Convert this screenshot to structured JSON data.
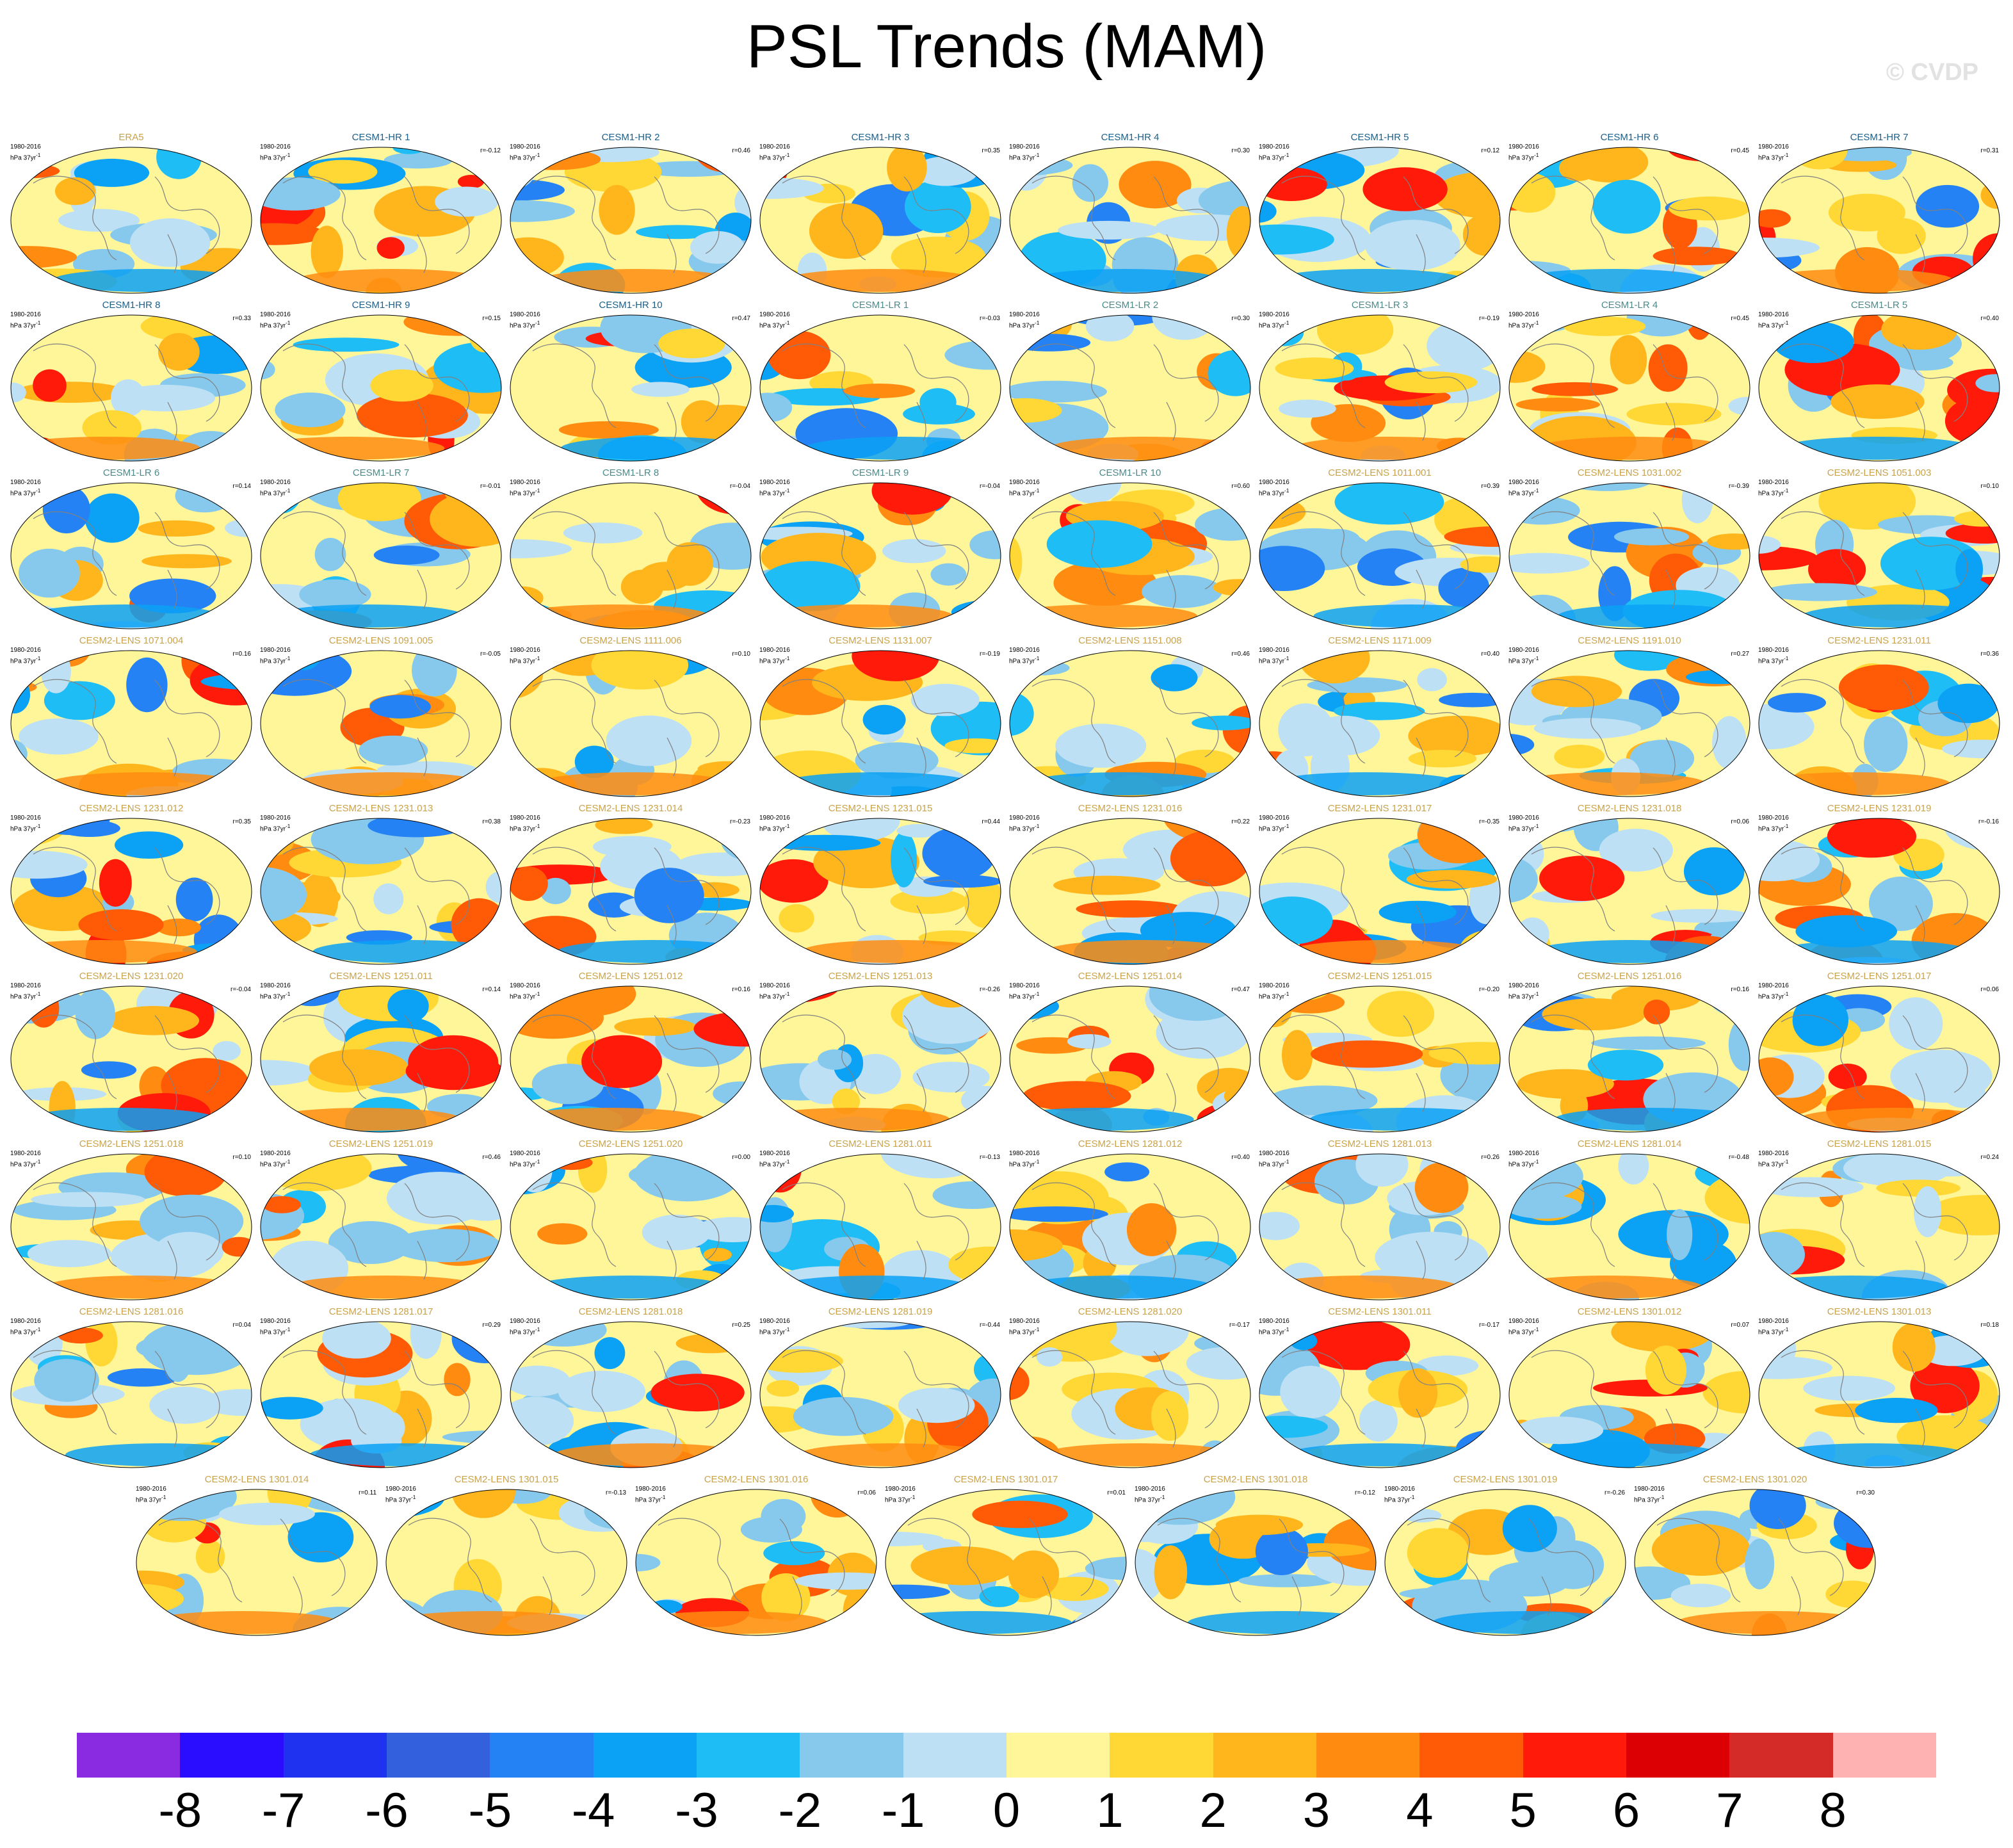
{
  "title": "PSL Trends (MAM)",
  "watermark": "© CVDP",
  "period": "1980-2016",
  "units": "hPa 37yr",
  "units_sup": "-1",
  "colors": [
    "#8a2be2",
    "#2a0dfe",
    "#1e32f0",
    "#3360dc",
    "#2582f4",
    "#0ba1f4",
    "#1fbdf6",
    "#87c9ec",
    "#bde0f4",
    "#fff69a",
    "#ffd835",
    "#ffb61c",
    "#ff8c10",
    "#ff5a05",
    "#ff1a0a",
    "#dc0004",
    "#d42a28",
    "#ffb2b2"
  ],
  "chart_data": {
    "type": "heatmap",
    "title": "PSL Trends (MAM)",
    "colorbar": {
      "ticks": [
        "-8",
        "-7",
        "-6",
        "-5",
        "-4",
        "-3",
        "-2",
        "-1",
        "0",
        "1",
        "2",
        "3",
        "4",
        "5",
        "6",
        "7",
        "8"
      ],
      "range": [
        -9,
        9
      ],
      "n_bins": 18
    },
    "panels": [
      {
        "name": "ERA5",
        "group": "obs",
        "r": ""
      },
      {
        "name": "CESM1-HR 1",
        "group": "hr",
        "r": "r=-0.12"
      },
      {
        "name": "CESM1-HR 2",
        "group": "hr",
        "r": "r=0.46"
      },
      {
        "name": "CESM1-HR 3",
        "group": "hr",
        "r": "r=0.35"
      },
      {
        "name": "CESM1-HR 4",
        "group": "hr",
        "r": "r=0.30"
      },
      {
        "name": "CESM1-HR 5",
        "group": "hr",
        "r": "r=0.12"
      },
      {
        "name": "CESM1-HR 6",
        "group": "hr",
        "r": "r=0.45"
      },
      {
        "name": "CESM1-HR 7",
        "group": "hr",
        "r": "r=0.31"
      },
      {
        "name": "CESM1-HR 8",
        "group": "hr",
        "r": "r=0.33"
      },
      {
        "name": "CESM1-HR 9",
        "group": "hr",
        "r": "r=0.15"
      },
      {
        "name": "CESM1-HR 10",
        "group": "hr",
        "r": "r=0.47"
      },
      {
        "name": "CESM1-LR 1",
        "group": "lr",
        "r": "r=-0.03"
      },
      {
        "name": "CESM1-LR 2",
        "group": "lr",
        "r": "r=0.30"
      },
      {
        "name": "CESM1-LR 3",
        "group": "lr",
        "r": "r=-0.19"
      },
      {
        "name": "CESM1-LR 4",
        "group": "lr",
        "r": "r=0.45"
      },
      {
        "name": "CESM1-LR 5",
        "group": "lr",
        "r": "r=0.40"
      },
      {
        "name": "CESM1-LR 6",
        "group": "lr",
        "r": "r=0.14"
      },
      {
        "name": "CESM1-LR 7",
        "group": "lr",
        "r": "r=-0.01"
      },
      {
        "name": "CESM1-LR 8",
        "group": "lr",
        "r": "r=-0.04"
      },
      {
        "name": "CESM1-LR 9",
        "group": "lr",
        "r": "r=-0.04"
      },
      {
        "name": "CESM1-LR 10",
        "group": "lr",
        "r": "r=0.60"
      },
      {
        "name": "CESM2-LENS 1011.001",
        "group": "lens",
        "r": "r=0.39"
      },
      {
        "name": "CESM2-LENS 1031.002",
        "group": "lens",
        "r": "r=-0.39"
      },
      {
        "name": "CESM2-LENS 1051.003",
        "group": "lens",
        "r": "r=0.10"
      },
      {
        "name": "CESM2-LENS 1071.004",
        "group": "lens",
        "r": "r=0.16"
      },
      {
        "name": "CESM2-LENS 1091.005",
        "group": "lens",
        "r": "r=-0.05"
      },
      {
        "name": "CESM2-LENS 1111.006",
        "group": "lens",
        "r": "r=0.10"
      },
      {
        "name": "CESM2-LENS 1131.007",
        "group": "lens",
        "r": "r=-0.19"
      },
      {
        "name": "CESM2-LENS 1151.008",
        "group": "lens",
        "r": "r=0.46"
      },
      {
        "name": "CESM2-LENS 1171.009",
        "group": "lens",
        "r": "r=0.40"
      },
      {
        "name": "CESM2-LENS 1191.010",
        "group": "lens",
        "r": "r=0.27"
      },
      {
        "name": "CESM2-LENS 1231.011",
        "group": "lens",
        "r": "r=0.36"
      },
      {
        "name": "CESM2-LENS 1231.012",
        "group": "lens",
        "r": "r=0.35"
      },
      {
        "name": "CESM2-LENS 1231.013",
        "group": "lens",
        "r": "r=0.38"
      },
      {
        "name": "CESM2-LENS 1231.014",
        "group": "lens",
        "r": "r=-0.23"
      },
      {
        "name": "CESM2-LENS 1231.015",
        "group": "lens",
        "r": "r=0.44"
      },
      {
        "name": "CESM2-LENS 1231.016",
        "group": "lens",
        "r": "r=0.22"
      },
      {
        "name": "CESM2-LENS 1231.017",
        "group": "lens",
        "r": "r=-0.35"
      },
      {
        "name": "CESM2-LENS 1231.018",
        "group": "lens",
        "r": "r=0.06"
      },
      {
        "name": "CESM2-LENS 1231.019",
        "group": "lens",
        "r": "r=-0.16"
      },
      {
        "name": "CESM2-LENS 1231.020",
        "group": "lens",
        "r": "r=-0.04"
      },
      {
        "name": "CESM2-LENS 1251.011",
        "group": "lens",
        "r": "r=0.14"
      },
      {
        "name": "CESM2-LENS 1251.012",
        "group": "lens",
        "r": "r=0.16"
      },
      {
        "name": "CESM2-LENS 1251.013",
        "group": "lens",
        "r": "r=-0.26"
      },
      {
        "name": "CESM2-LENS 1251.014",
        "group": "lens",
        "r": "r=0.47"
      },
      {
        "name": "CESM2-LENS 1251.015",
        "group": "lens",
        "r": "r=-0.20"
      },
      {
        "name": "CESM2-LENS 1251.016",
        "group": "lens",
        "r": "r=0.16"
      },
      {
        "name": "CESM2-LENS 1251.017",
        "group": "lens",
        "r": "r=0.06"
      },
      {
        "name": "CESM2-LENS 1251.018",
        "group": "lens",
        "r": "r=0.10"
      },
      {
        "name": "CESM2-LENS 1251.019",
        "group": "lens",
        "r": "r=0.46"
      },
      {
        "name": "CESM2-LENS 1251.020",
        "group": "lens",
        "r": "r=0.00"
      },
      {
        "name": "CESM2-LENS 1281.011",
        "group": "lens",
        "r": "r=-0.13"
      },
      {
        "name": "CESM2-LENS 1281.012",
        "group": "lens",
        "r": "r=0.40"
      },
      {
        "name": "CESM2-LENS 1281.013",
        "group": "lens",
        "r": "r=0.26"
      },
      {
        "name": "CESM2-LENS 1281.014",
        "group": "lens",
        "r": "r=-0.48"
      },
      {
        "name": "CESM2-LENS 1281.015",
        "group": "lens",
        "r": "r=0.24"
      },
      {
        "name": "CESM2-LENS 1281.016",
        "group": "lens",
        "r": "r=0.04"
      },
      {
        "name": "CESM2-LENS 1281.017",
        "group": "lens",
        "r": "r=0.29"
      },
      {
        "name": "CESM2-LENS 1281.018",
        "group": "lens",
        "r": "r=0.25"
      },
      {
        "name": "CESM2-LENS 1281.019",
        "group": "lens",
        "r": "r=-0.44"
      },
      {
        "name": "CESM2-LENS 1281.020",
        "group": "lens",
        "r": "r=-0.17"
      },
      {
        "name": "CESM2-LENS 1301.011",
        "group": "lens",
        "r": "r=-0.17"
      },
      {
        "name": "CESM2-LENS 1301.012",
        "group": "lens",
        "r": "r=0.07"
      },
      {
        "name": "CESM2-LENS 1301.013",
        "group": "lens",
        "r": "r=0.18"
      },
      {
        "name": "CESM2-LENS 1301.014",
        "group": "lens",
        "r": "r=0.11"
      },
      {
        "name": "CESM2-LENS 1301.015",
        "group": "lens",
        "r": "r=-0.13"
      },
      {
        "name": "CESM2-LENS 1301.016",
        "group": "lens",
        "r": "r=0.06"
      },
      {
        "name": "CESM2-LENS 1301.017",
        "group": "lens",
        "r": "r=0.01"
      },
      {
        "name": "CESM2-LENS 1301.018",
        "group": "lens",
        "r": "r=-0.12"
      },
      {
        "name": "CESM2-LENS 1301.019",
        "group": "lens",
        "r": "r=-0.26"
      },
      {
        "name": "CESM2-LENS 1301.020",
        "group": "lens",
        "r": "r=0.30"
      }
    ]
  }
}
